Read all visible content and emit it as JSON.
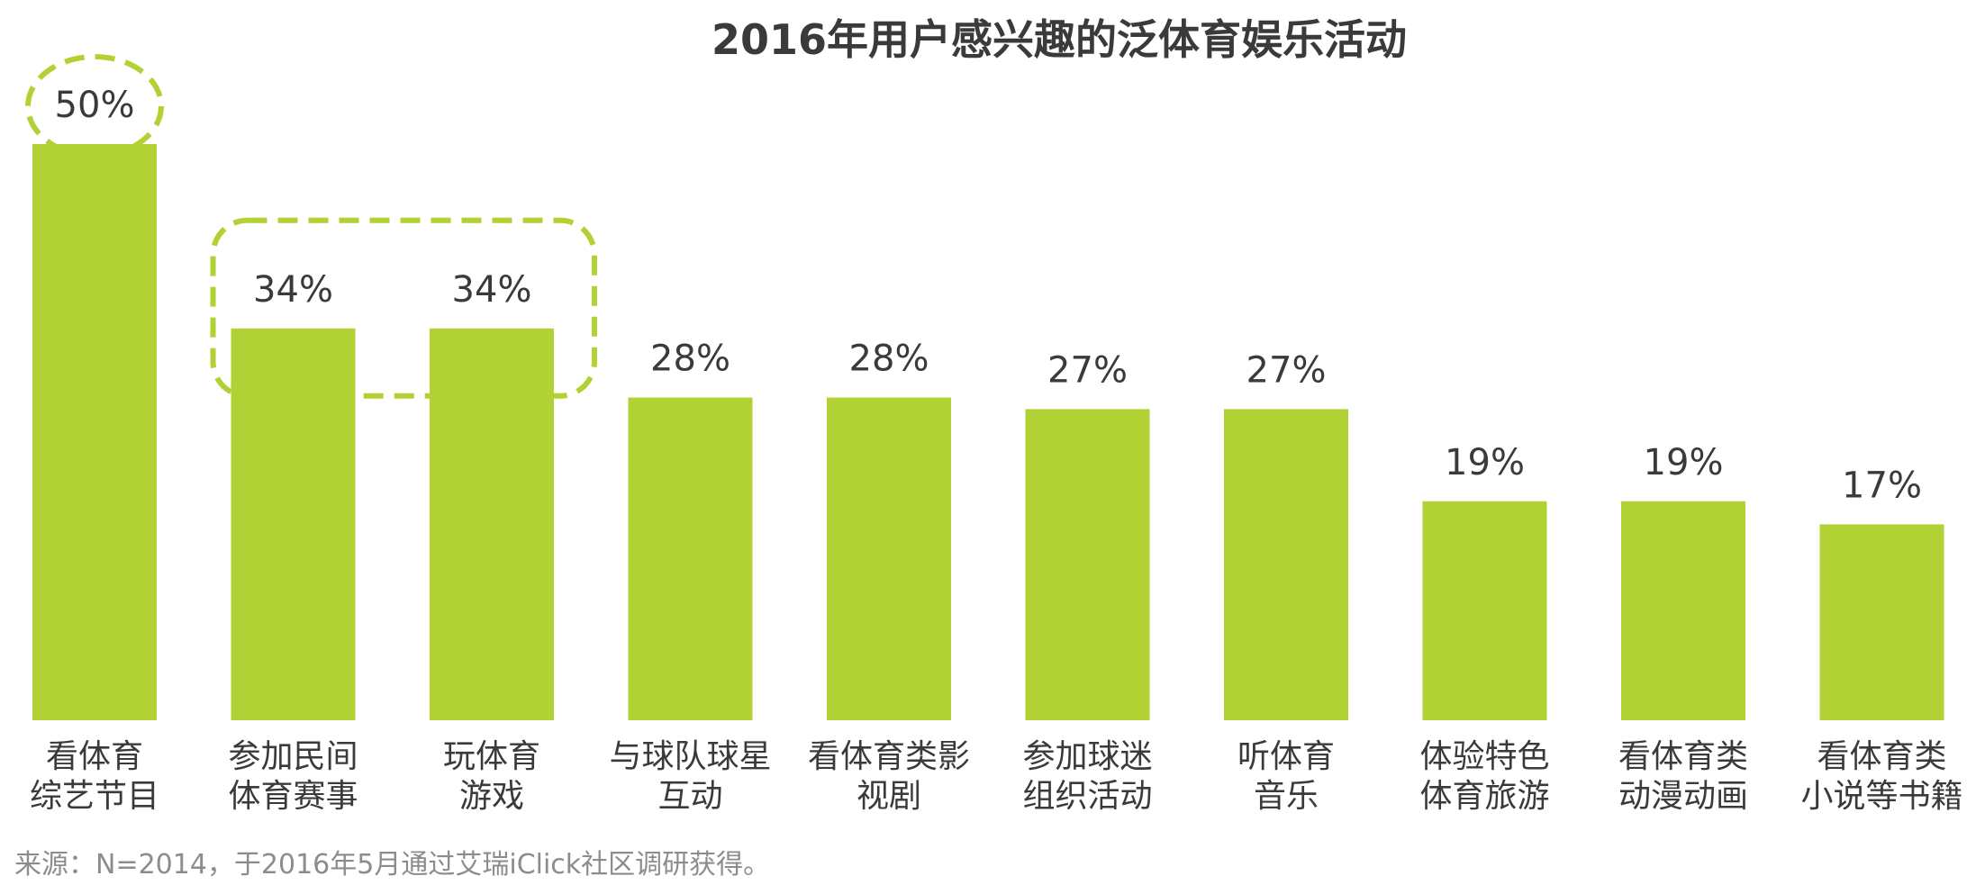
{
  "chart_data": {
    "type": "bar",
    "title": "2016年用户感兴趣的泛体育娱乐活动",
    "categories": [
      [
        "看体育",
        "综艺节目"
      ],
      [
        "参加民间",
        "体育赛事"
      ],
      [
        "玩体育",
        "游戏"
      ],
      [
        "与球队球星",
        "互动"
      ],
      [
        "看体育类影",
        "视剧"
      ],
      [
        "参加球迷",
        "组织活动"
      ],
      [
        "听体育",
        "音乐"
      ],
      [
        "体验特色",
        "体育旅游"
      ],
      [
        "看体育类",
        "动漫动画"
      ],
      [
        "看体育类",
        "小说等书籍"
      ]
    ],
    "values": [
      50,
      34,
      34,
      28,
      28,
      27,
      27,
      19,
      19,
      17
    ],
    "value_labels": [
      "50%",
      "34%",
      "34%",
      "28%",
      "28%",
      "27%",
      "27%",
      "19%",
      "19%",
      "17%"
    ],
    "unit": "%",
    "ylim": [
      0,
      50
    ],
    "grid": false,
    "bar_color": "#b1d135",
    "highlight_color": "#b1d135",
    "highlights": [
      {
        "shape": "ellipse",
        "indices": [
          0
        ]
      },
      {
        "shape": "rounded-rect",
        "indices": [
          1,
          2
        ]
      }
    ]
  },
  "source": "来源：N=2014，于2016年5月通过艾瑞iClick社区调研获得。"
}
